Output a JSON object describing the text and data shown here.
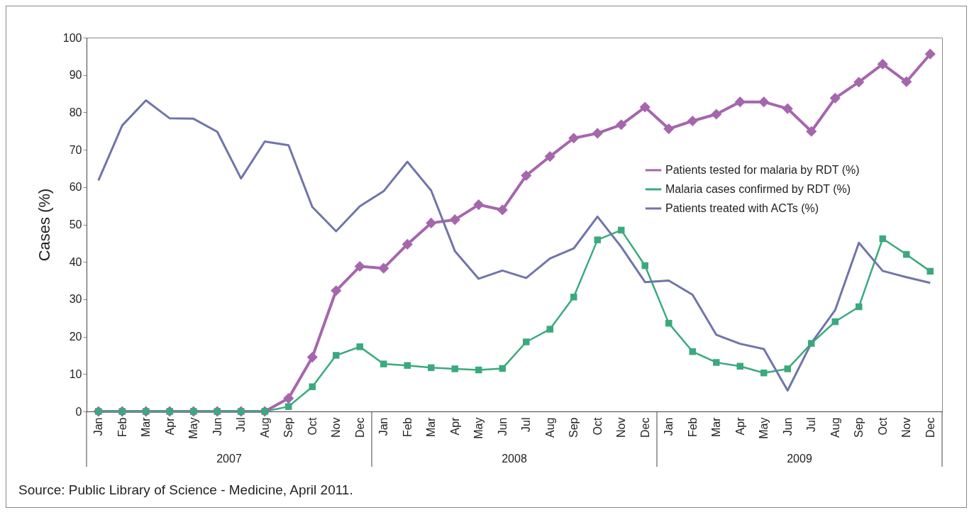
{
  "chart_data": {
    "type": "line",
    "ylabel": "Cases (%)",
    "categories": [
      "Jan",
      "Feb",
      "Mar",
      "Apr",
      "May",
      "Jun",
      "Jul",
      "Aug",
      "Sep",
      "Oct",
      "Nov",
      "Dec",
      "Jan",
      "Feb",
      "Mar",
      "Apr",
      "May",
      "Jun",
      "Jul",
      "Aug",
      "Sep",
      "Oct",
      "Nov",
      "Dec",
      "Jan",
      "Feb",
      "Mar",
      "Apr",
      "May",
      "Jun",
      "Jul",
      "Aug",
      "Sep",
      "Oct",
      "Nov",
      "Dec"
    ],
    "series": [
      {
        "name": "Patients tested for malaria by RDT (%)",
        "color": "#a666ad",
        "marker": "diamond",
        "values": [
          0,
          0,
          0,
          0,
          0,
          0,
          0,
          0,
          3.5,
          14.5,
          32.3,
          38.8,
          38.3,
          44.7,
          50.4,
          51.3,
          55.3,
          53.9,
          63.1,
          68.2,
          73.1,
          74.4,
          76.7,
          81.4,
          75.6,
          77.7,
          79.5,
          82.8,
          82.8,
          81.0,
          74.9,
          83.8,
          88.1,
          92.9,
          88.2,
          95.6
        ]
      },
      {
        "name": "Malaria cases confirmed by RDT (%)",
        "color": "#3aaa7e",
        "marker": "square",
        "values": [
          0,
          0,
          0,
          0,
          0,
          0,
          0,
          0,
          1.3,
          6.6,
          15.0,
          17.3,
          12.7,
          12.3,
          11.7,
          11.4,
          11.1,
          11.5,
          18.6,
          22.0,
          30.6,
          45.9,
          48.5,
          39.0,
          23.6,
          16.0,
          13.1,
          12.1,
          10.3,
          11.4,
          18.2,
          24.0,
          28.0,
          46.2,
          42.0,
          37.5
        ]
      },
      {
        "name": "Patients treated with ACTs (%)",
        "color": "#7075a9",
        "marker": "none",
        "values": [
          61.8,
          76.5,
          83.2,
          78.4,
          78.3,
          74.8,
          62.3,
          72.2,
          71.2,
          54.7,
          48.2,
          54.9,
          58.9,
          66.8,
          59.1,
          42.9,
          35.5,
          37.7,
          35.7,
          40.9,
          43.6,
          52.1,
          44.0,
          34.6,
          35.0,
          31.2,
          20.5,
          18.1,
          16.7,
          5.6,
          18.3,
          27.1,
          45.1,
          37.6,
          35.9,
          34.4
        ]
      }
    ],
    "ylim": [
      0,
      100
    ],
    "yticks": [
      0,
      10,
      20,
      30,
      40,
      50,
      60,
      70,
      80,
      90,
      100
    ],
    "grid": false,
    "legend": "right",
    "line_style": "solid",
    "annotations": [
      "2007",
      "2008",
      "2009",
      "Source: Public Library of Science - Medicine, April 2011."
    ]
  }
}
